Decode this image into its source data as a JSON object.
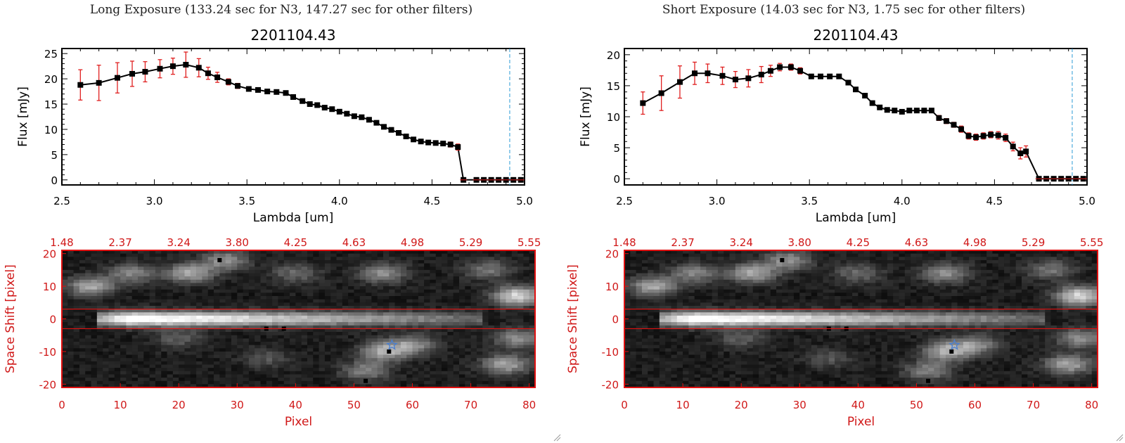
{
  "window": {
    "width": 1600,
    "height": 630
  },
  "colors": {
    "line": "#000000",
    "marker": "#000000",
    "error_bar": "#e02020",
    "cutoff_line": "#2b9ad6",
    "image_frame": "#e01010",
    "image_axis_text": "#d01818",
    "extraction_box": "#e01010",
    "star_marker": "#4a7fd0"
  },
  "chart_data": [
    {
      "type": "line",
      "panel": "left",
      "header": "Long Exposure (133.24 sec for N3, 147.27 sec for other filters)",
      "title": "2201104.43",
      "xlabel": "Lambda [um]",
      "ylabel": "Flux [mJy]",
      "xlim": [
        2.5,
        5.0
      ],
      "ylim": [
        -1,
        26
      ],
      "xticks": [
        2.5,
        3.0,
        3.5,
        4.0,
        4.5,
        5.0
      ],
      "xtick_labels": [
        "2.5",
        "3.0",
        "3.5",
        "4.0",
        "4.5",
        "5.0"
      ],
      "yticks": [
        0,
        5,
        10,
        15,
        20,
        25
      ],
      "cutoff_x": 4.92,
      "series": [
        {
          "x": [
            2.6,
            2.7,
            2.8,
            2.88,
            2.95,
            3.03,
            3.1,
            3.17,
            3.24,
            3.29,
            3.34,
            3.4,
            3.45,
            3.51,
            3.56,
            3.61,
            3.66,
            3.71,
            3.75,
            3.8,
            3.84,
            3.88,
            3.92,
            3.96,
            4.0,
            4.04,
            4.08,
            4.12,
            4.16,
            4.2,
            4.24,
            4.28,
            4.32,
            4.36,
            4.4,
            4.44,
            4.48,
            4.52,
            4.56,
            4.6,
            4.64,
            4.67,
            4.74,
            4.78,
            4.82,
            4.86,
            4.9,
            4.94,
            4.98
          ],
          "y": [
            18.8,
            19.2,
            20.2,
            21.0,
            21.4,
            22.0,
            22.5,
            22.8,
            22.2,
            21.1,
            20.3,
            19.4,
            18.6,
            18.0,
            17.8,
            17.5,
            17.4,
            17.2,
            16.4,
            15.6,
            15.0,
            14.8,
            14.3,
            14.0,
            13.5,
            13.1,
            12.6,
            12.4,
            11.9,
            11.3,
            10.5,
            9.9,
            9.3,
            8.6,
            8.0,
            7.6,
            7.4,
            7.3,
            7.2,
            7.0,
            6.5,
            0,
            0,
            0,
            0,
            0,
            0,
            0,
            0
          ],
          "yerr": [
            3.0,
            3.5,
            3.0,
            2.5,
            2.0,
            1.8,
            1.6,
            2.5,
            1.8,
            1.2,
            1.0,
            0.6,
            0.5,
            0.4,
            0.3,
            0.3,
            0.3,
            0.3,
            0.3,
            0.3,
            0.3,
            0.3,
            0.3,
            0.3,
            0.3,
            0.3,
            0.3,
            0.3,
            0.3,
            0.3,
            0.3,
            0.3,
            0.3,
            0.3,
            0.4,
            0.4,
            0.4,
            0.4,
            0.4,
            0.5,
            0.6,
            0,
            0,
            0,
            0,
            0,
            0,
            0,
            0
          ]
        }
      ]
    },
    {
      "type": "line",
      "panel": "right",
      "header": "Short Exposure (14.03 sec for N3, 1.75 sec for other filters)",
      "title": "2201104.43",
      "xlabel": "Lambda [um]",
      "ylabel": "Flux [mJy]",
      "xlim": [
        2.5,
        5.0
      ],
      "ylim": [
        -1,
        21
      ],
      "xticks": [
        2.5,
        3.0,
        3.5,
        4.0,
        4.5,
        5.0
      ],
      "xtick_labels": [
        "2.5",
        "3.0",
        "3.5",
        "4.0",
        "4.5",
        "5.0"
      ],
      "yticks": [
        0,
        5,
        10,
        15,
        20
      ],
      "cutoff_x": 4.92,
      "series": [
        {
          "x": [
            2.6,
            2.7,
            2.8,
            2.88,
            2.95,
            3.03,
            3.1,
            3.17,
            3.24,
            3.29,
            3.34,
            3.4,
            3.45,
            3.51,
            3.56,
            3.61,
            3.66,
            3.71,
            3.75,
            3.8,
            3.84,
            3.88,
            3.92,
            3.96,
            4.0,
            4.04,
            4.08,
            4.12,
            4.16,
            4.2,
            4.24,
            4.28,
            4.32,
            4.36,
            4.4,
            4.44,
            4.48,
            4.52,
            4.56,
            4.6,
            4.64,
            4.67,
            4.74,
            4.78,
            4.82,
            4.86,
            4.9,
            4.94,
            4.98
          ],
          "y": [
            12.2,
            13.8,
            15.6,
            17.0,
            17.0,
            16.6,
            16.0,
            16.2,
            16.8,
            17.4,
            18.0,
            18.0,
            17.4,
            16.5,
            16.5,
            16.5,
            16.5,
            15.5,
            14.4,
            13.4,
            12.2,
            11.5,
            11.1,
            11.0,
            10.8,
            11.0,
            11.0,
            11.0,
            11.0,
            9.8,
            9.3,
            8.7,
            8.0,
            6.9,
            6.7,
            6.9,
            7.1,
            7.0,
            6.6,
            5.2,
            4.1,
            4.4,
            0,
            0,
            0,
            0,
            0,
            0,
            0
          ],
          "yerr": [
            1.8,
            2.8,
            2.6,
            1.8,
            1.5,
            1.4,
            1.3,
            1.4,
            1.3,
            0.9,
            0.6,
            0.5,
            0.5,
            0.3,
            0.3,
            0.3,
            0.3,
            0.3,
            0.3,
            0.3,
            0.3,
            0.3,
            0.3,
            0.3,
            0.3,
            0.3,
            0.3,
            0.3,
            0.3,
            0.4,
            0.4,
            0.4,
            0.5,
            0.5,
            0.5,
            0.5,
            0.5,
            0.6,
            0.6,
            0.7,
            0.9,
            0.9,
            0,
            0,
            0,
            0,
            0,
            0,
            0
          ]
        }
      ]
    },
    {
      "type": "heatmap",
      "panel": "left",
      "xlabel": "Pixel",
      "ylabel": "Space Shift [pixel]",
      "xlim": [
        0,
        81
      ],
      "ylim": [
        -21,
        21
      ],
      "xticks": [
        0,
        10,
        20,
        30,
        40,
        50,
        60,
        70,
        80
      ],
      "yticks": [
        -20,
        -10,
        0,
        10,
        20
      ],
      "top_tick_labels": [
        "1.48",
        "2.37",
        "3.24",
        "3.80",
        "4.25",
        "4.63",
        "4.98",
        "5.29",
        "5.55"
      ],
      "extraction_window": [
        -3,
        3
      ],
      "star_position": [
        56.5,
        -8
      ],
      "blobs": [
        {
          "x": 5,
          "y": 10,
          "amp": 0.55
        },
        {
          "x": 12,
          "y": 14,
          "amp": 0.4
        },
        {
          "x": 22,
          "y": 14,
          "amp": 0.55
        },
        {
          "x": 28,
          "y": 18,
          "amp": 0.45
        },
        {
          "x": 40,
          "y": 14,
          "amp": 0.3
        },
        {
          "x": 55,
          "y": 14,
          "amp": 0.45
        },
        {
          "x": 73,
          "y": 15,
          "amp": 0.35
        },
        {
          "x": 78,
          "y": 7,
          "amp": 0.75
        },
        {
          "x": 55,
          "y": -10,
          "amp": 0.55
        },
        {
          "x": 60,
          "y": -8,
          "amp": 0.45
        },
        {
          "x": 52,
          "y": -16,
          "amp": 0.4
        },
        {
          "x": 76,
          "y": -14,
          "amp": 0.55
        },
        {
          "x": 78,
          "y": -6,
          "amp": 0.45
        },
        {
          "x": 20,
          "y": -6,
          "amp": 0.25
        },
        {
          "x": 35,
          "y": -12,
          "amp": 0.22
        }
      ],
      "dark_pixels": [
        [
          27,
          18
        ],
        [
          35,
          -3
        ],
        [
          38,
          -3
        ],
        [
          56,
          -10
        ],
        [
          52,
          -19
        ]
      ]
    },
    {
      "type": "heatmap",
      "panel": "right",
      "xlabel": "Pixel",
      "ylabel": "Space Shift [pixel]",
      "xlim": [
        0,
        81
      ],
      "ylim": [
        -21,
        21
      ],
      "xticks": [
        0,
        10,
        20,
        30,
        40,
        50,
        60,
        70,
        80
      ],
      "yticks": [
        -20,
        -10,
        0,
        10,
        20
      ],
      "top_tick_labels": [
        "1.48",
        "2.37",
        "3.24",
        "3.80",
        "4.25",
        "4.63",
        "4.98",
        "5.29",
        "5.55"
      ],
      "extraction_window": [
        -3,
        3
      ],
      "star_position": [
        56.5,
        -8
      ],
      "blobs": [
        {
          "x": 5,
          "y": 10,
          "amp": 0.55
        },
        {
          "x": 12,
          "y": 14,
          "amp": 0.4
        },
        {
          "x": 22,
          "y": 14,
          "amp": 0.55
        },
        {
          "x": 28,
          "y": 18,
          "amp": 0.45
        },
        {
          "x": 40,
          "y": 14,
          "amp": 0.3
        },
        {
          "x": 55,
          "y": 14,
          "amp": 0.45
        },
        {
          "x": 73,
          "y": 15,
          "amp": 0.35
        },
        {
          "x": 78,
          "y": 7,
          "amp": 0.75
        },
        {
          "x": 55,
          "y": -10,
          "amp": 0.55
        },
        {
          "x": 60,
          "y": -8,
          "amp": 0.45
        },
        {
          "x": 52,
          "y": -16,
          "amp": 0.4
        },
        {
          "x": 76,
          "y": -14,
          "amp": 0.55
        },
        {
          "x": 78,
          "y": -6,
          "amp": 0.45
        },
        {
          "x": 20,
          "y": -6,
          "amp": 0.25
        },
        {
          "x": 35,
          "y": -12,
          "amp": 0.22
        }
      ],
      "dark_pixels": [
        [
          27,
          18
        ],
        [
          35,
          -3
        ],
        [
          38,
          -3
        ],
        [
          56,
          -10
        ],
        [
          52,
          -19
        ]
      ]
    }
  ]
}
